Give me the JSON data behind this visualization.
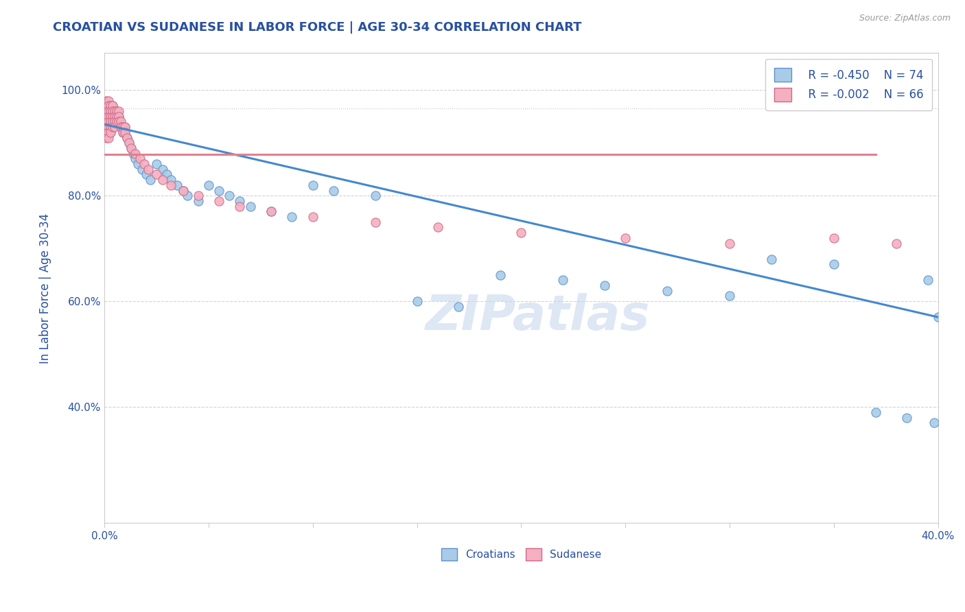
{
  "title": "CROATIAN VS SUDANESE IN LABOR FORCE | AGE 30-34 CORRELATION CHART",
  "source": "Source: ZipAtlas.com",
  "ylabel": "In Labor Force | Age 30-34",
  "xlim": [
    0.0,
    0.4
  ],
  "ylim": [
    0.18,
    1.07
  ],
  "xticks": [
    0.0,
    0.05,
    0.1,
    0.15,
    0.2,
    0.25,
    0.3,
    0.35,
    0.4
  ],
  "ytick_vals": [
    0.4,
    0.6,
    0.8,
    1.0
  ],
  "ytick_labels": [
    "40.0%",
    "60.0%",
    "80.0%",
    "100.0%"
  ],
  "xtick_labels": [
    "0.0%",
    "",
    "",
    "",
    "",
    "",
    "",
    "",
    "40.0%"
  ],
  "croatian_color": "#a8cce8",
  "sudanese_color": "#f4b0c0",
  "croatian_edge_color": "#6090c8",
  "sudanese_edge_color": "#d06888",
  "croatian_line_color": "#4488cc",
  "sudanese_line_color": "#e08090",
  "legend_r_croatian": "R = -0.450",
  "legend_n_croatian": "N = 74",
  "legend_r_sudanese": "R = -0.002",
  "legend_n_sudanese": "N = 66",
  "watermark": "ZIPatlas",
  "title_color": "#2850a0",
  "axis_label_color": "#2850a0",
  "tick_color": "#2850a0",
  "legend_text_color": "#2850a0",
  "croatian_trendline": {
    "x": [
      0.0,
      0.4
    ],
    "y": [
      0.935,
      0.57
    ]
  },
  "sudanese_trendline": {
    "x": [
      0.0,
      0.37
    ],
    "y": [
      0.878,
      0.878
    ]
  },
  "croatian_x": [
    0.001,
    0.001,
    0.001,
    0.001,
    0.001,
    0.002,
    0.002,
    0.002,
    0.002,
    0.002,
    0.002,
    0.003,
    0.003,
    0.003,
    0.003,
    0.003,
    0.003,
    0.004,
    0.004,
    0.004,
    0.004,
    0.004,
    0.005,
    0.005,
    0.005,
    0.006,
    0.006,
    0.007,
    0.007,
    0.008,
    0.009,
    0.01,
    0.01,
    0.011,
    0.012,
    0.013,
    0.014,
    0.015,
    0.016,
    0.018,
    0.02,
    0.022,
    0.025,
    0.028,
    0.03,
    0.032,
    0.035,
    0.038,
    0.04,
    0.045,
    0.05,
    0.055,
    0.06,
    0.065,
    0.07,
    0.08,
    0.09,
    0.1,
    0.11,
    0.13,
    0.15,
    0.17,
    0.19,
    0.22,
    0.24,
    0.27,
    0.3,
    0.32,
    0.35,
    0.37,
    0.385,
    0.395,
    0.398,
    0.4
  ],
  "croatian_y": [
    0.97,
    0.96,
    0.95,
    0.94,
    0.93,
    0.97,
    0.96,
    0.95,
    0.94,
    0.93,
    0.92,
    0.97,
    0.96,
    0.95,
    0.94,
    0.93,
    0.92,
    0.97,
    0.96,
    0.95,
    0.94,
    0.93,
    0.96,
    0.95,
    0.94,
    0.96,
    0.95,
    0.95,
    0.94,
    0.93,
    0.92,
    0.93,
    0.92,
    0.91,
    0.9,
    0.89,
    0.88,
    0.87,
    0.86,
    0.85,
    0.84,
    0.83,
    0.86,
    0.85,
    0.84,
    0.83,
    0.82,
    0.81,
    0.8,
    0.79,
    0.82,
    0.81,
    0.8,
    0.79,
    0.78,
    0.77,
    0.76,
    0.82,
    0.81,
    0.8,
    0.6,
    0.59,
    0.65,
    0.64,
    0.63,
    0.62,
    0.61,
    0.68,
    0.67,
    0.39,
    0.38,
    0.64,
    0.37,
    0.57
  ],
  "sudanese_x": [
    0.001,
    0.001,
    0.001,
    0.001,
    0.001,
    0.001,
    0.001,
    0.001,
    0.002,
    0.002,
    0.002,
    0.002,
    0.002,
    0.002,
    0.002,
    0.002,
    0.003,
    0.003,
    0.003,
    0.003,
    0.003,
    0.003,
    0.004,
    0.004,
    0.004,
    0.004,
    0.004,
    0.005,
    0.005,
    0.005,
    0.005,
    0.006,
    0.006,
    0.006,
    0.007,
    0.007,
    0.007,
    0.008,
    0.008,
    0.009,
    0.009,
    0.01,
    0.01,
    0.011,
    0.012,
    0.013,
    0.015,
    0.017,
    0.019,
    0.021,
    0.025,
    0.028,
    0.032,
    0.038,
    0.045,
    0.055,
    0.065,
    0.08,
    0.1,
    0.13,
    0.16,
    0.2,
    0.25,
    0.3,
    0.35,
    0.38
  ],
  "sudanese_y": [
    0.98,
    0.97,
    0.96,
    0.95,
    0.94,
    0.93,
    0.92,
    0.91,
    0.98,
    0.97,
    0.96,
    0.95,
    0.94,
    0.93,
    0.92,
    0.91,
    0.97,
    0.96,
    0.95,
    0.94,
    0.93,
    0.92,
    0.97,
    0.96,
    0.95,
    0.94,
    0.93,
    0.96,
    0.95,
    0.94,
    0.93,
    0.96,
    0.95,
    0.94,
    0.96,
    0.95,
    0.94,
    0.94,
    0.93,
    0.93,
    0.92,
    0.93,
    0.92,
    0.91,
    0.9,
    0.89,
    0.88,
    0.87,
    0.86,
    0.85,
    0.84,
    0.83,
    0.82,
    0.81,
    0.8,
    0.79,
    0.78,
    0.77,
    0.76,
    0.75,
    0.74,
    0.73,
    0.72,
    0.71,
    0.72,
    0.71
  ]
}
